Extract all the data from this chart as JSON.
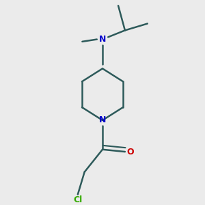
{
  "bg_color": "#ebebeb",
  "bond_color": "#2d5a5a",
  "n_color": "#0000cc",
  "o_color": "#cc0000",
  "cl_color": "#33aa00",
  "line_width": 1.8,
  "figsize": [
    3.0,
    3.0
  ],
  "dpi": 100,
  "xlim": [
    0.15,
    0.85
  ],
  "ylim": [
    0.05,
    0.95
  ]
}
